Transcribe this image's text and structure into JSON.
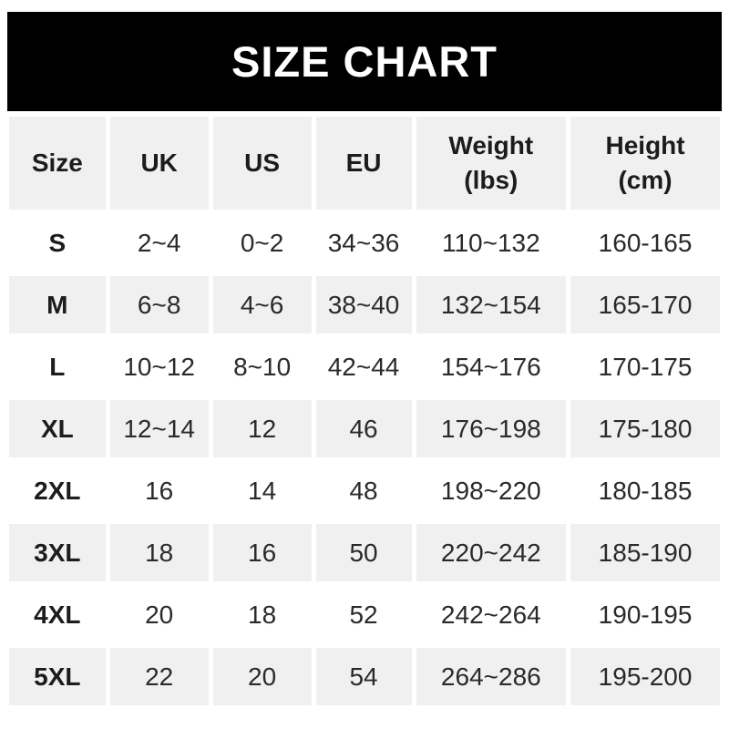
{
  "banner": {
    "title": "SIZE CHART"
  },
  "colors": {
    "banner_bg": "#000000",
    "banner_text": "#ffffff",
    "header_row_bg": "#f0f0f0",
    "alt_row_bg": "#f0f0f0",
    "row_bg": "#ffffff",
    "gap_color": "#ffffff",
    "text": "#2a2a2a",
    "bold_text": "#1c1c1c"
  },
  "chart_data": {
    "type": "table",
    "title": "SIZE CHART",
    "columns": [
      "Size",
      "UK",
      "US",
      "EU",
      "Weight\n(lbs)",
      "Height\n(cm)"
    ],
    "rows": [
      [
        "S",
        "2~4",
        "0~2",
        "34~36",
        "110~132",
        "160-165"
      ],
      [
        "M",
        "6~8",
        "4~6",
        "38~40",
        "132~154",
        "165-170"
      ],
      [
        "L",
        "10~12",
        "8~10",
        "42~44",
        "154~176",
        "170-175"
      ],
      [
        "XL",
        "12~14",
        "12",
        "46",
        "176~198",
        "175-180"
      ],
      [
        "2XL",
        "16",
        "14",
        "48",
        "198~220",
        "180-185"
      ],
      [
        "3XL",
        "18",
        "16",
        "50",
        "220~242",
        "185-190"
      ],
      [
        "4XL",
        "20",
        "18",
        "52",
        "242~264",
        "190-195"
      ],
      [
        "5XL",
        "22",
        "20",
        "54",
        "264~286",
        "195-200"
      ]
    ],
    "layout": {
      "alternating_rows": true,
      "grid": "white gaps between cells",
      "header_position": "top"
    }
  }
}
